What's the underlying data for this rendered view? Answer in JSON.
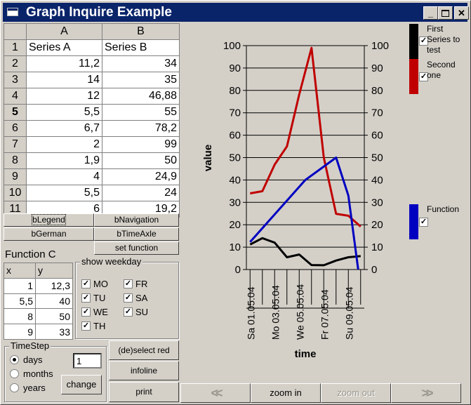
{
  "window": {
    "title": "Graph Inquire Example",
    "min_icon": "minimize-icon",
    "max_icon": "maximize-icon",
    "close_icon": "close-icon"
  },
  "sheet": {
    "col_headers": [
      "A",
      "B"
    ],
    "rows": [
      {
        "n": "1",
        "a": "Series A",
        "b": "Series B"
      },
      {
        "n": "2",
        "a": "11,2",
        "b": "34"
      },
      {
        "n": "3",
        "a": "14",
        "b": "35"
      },
      {
        "n": "4",
        "a": "12",
        "b": "46,88"
      },
      {
        "n": "5",
        "a": "5,5",
        "b": "55"
      },
      {
        "n": "6",
        "a": "6,7",
        "b": "78,2"
      },
      {
        "n": "7",
        "a": "2",
        "b": "99"
      },
      {
        "n": "8",
        "a": "1,9",
        "b": "50"
      },
      {
        "n": "9",
        "a": "4",
        "b": "24,9"
      },
      {
        "n": "10",
        "a": "5,5",
        "b": "24"
      },
      {
        "n": "11",
        "a": "6",
        "b": "19,2"
      }
    ]
  },
  "buttons": {
    "bLegend": "bLegend",
    "bNavigation": "bNavigation",
    "bGerman": "bGerman",
    "bTimeAxle": "bTimeAxle",
    "set_function": "set function",
    "deselect_red": "(de)select red",
    "infoline": "infoline",
    "print": "print",
    "change": "change"
  },
  "function_grid": {
    "title": "Function C",
    "headers": [
      "x",
      "y"
    ],
    "rows": [
      [
        "1",
        "12,3"
      ],
      [
        "5,5",
        "40"
      ],
      [
        "8",
        "50"
      ],
      [
        "9",
        "33"
      ]
    ]
  },
  "weekday": {
    "label": "show weekday",
    "days": [
      {
        "label": "MO",
        "checked": true
      },
      {
        "label": "TU",
        "checked": true
      },
      {
        "label": "WE",
        "checked": true
      },
      {
        "label": "TH",
        "checked": true
      },
      {
        "label": "FR",
        "checked": true
      },
      {
        "label": "SA",
        "checked": true
      },
      {
        "label": "SU",
        "checked": true
      }
    ]
  },
  "timestep": {
    "label": "TimeStep",
    "options": [
      {
        "label": "days",
        "selected": true
      },
      {
        "label": "months",
        "selected": false
      },
      {
        "label": "years",
        "selected": false
      }
    ],
    "value": "1"
  },
  "nav": {
    "prev": "<<",
    "zoom_in": "zoom in",
    "zoom_out": "zoom out",
    "next": ">>",
    "prev_icon": "double-chevron-left-icon",
    "next_icon": "double-chevron-right-icon"
  },
  "colors": {
    "series_a": "#000000",
    "series_b": "#c00000",
    "function": "#0000c0",
    "title_bar": "#0a246a"
  },
  "chart_data": {
    "type": "line",
    "ylabel": "value",
    "xlabel": "time",
    "ylim": [
      0,
      100
    ],
    "yticks": [
      "0",
      "10",
      "20",
      "30",
      "40",
      "50",
      "60",
      "70",
      "80",
      "90",
      "100"
    ],
    "x_ticks": [
      "Sa 01.05.04",
      "Mo 03.05.04",
      "We 05.05.04",
      "Fr 07.05.04",
      "Su 09.05.04"
    ],
    "x_tick_pos": [
      1,
      3,
      5,
      7,
      9
    ],
    "series": [
      {
        "name": "First Series to test",
        "color": "#000000",
        "x": [
          1,
          2,
          3,
          4,
          5,
          6,
          7,
          8,
          9,
          10
        ],
        "values": [
          11.2,
          14,
          12,
          5.5,
          6.7,
          2,
          1.9,
          4,
          5.5,
          6
        ]
      },
      {
        "name": "Second one",
        "color": "#c00000",
        "x": [
          1,
          2,
          3,
          4,
          5,
          6,
          7,
          8,
          9,
          10
        ],
        "values": [
          34,
          35,
          46.88,
          55,
          78.2,
          99,
          50,
          24.9,
          24,
          19.2
        ]
      },
      {
        "name": "Function",
        "color": "#0000c0",
        "x": [
          1,
          5.5,
          8,
          9,
          9.8
        ],
        "values": [
          12.3,
          40,
          50,
          33,
          0
        ]
      }
    ],
    "legend": [
      {
        "label": "First Series to test",
        "checked": true
      },
      {
        "label": "Second one",
        "checked": true
      },
      {
        "label": "Function",
        "checked": true
      }
    ],
    "grid": "horizontal",
    "legend_position": "right"
  }
}
